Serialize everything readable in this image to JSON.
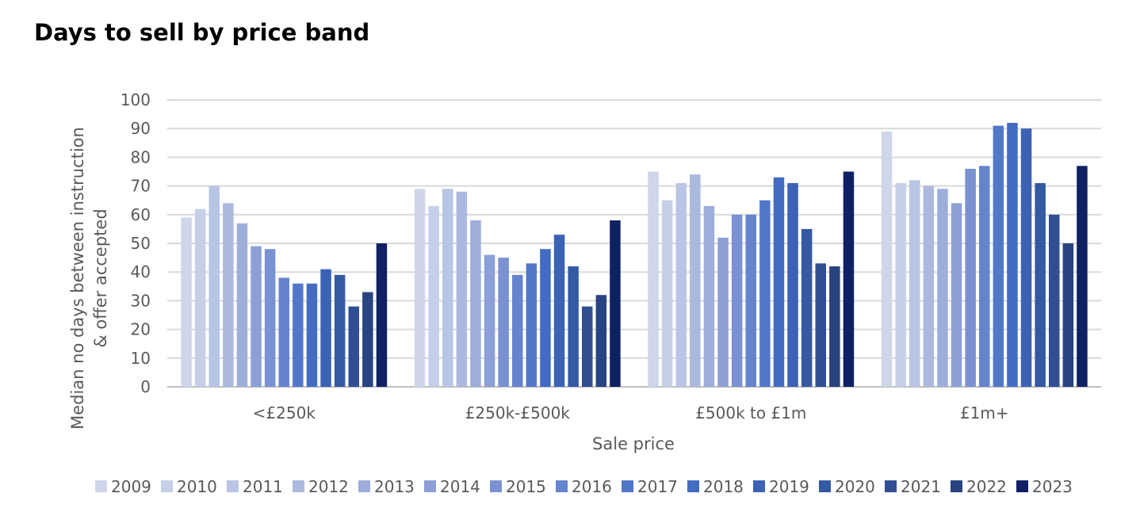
{
  "chart_data": {
    "type": "bar",
    "title": "Days to sell by price band",
    "xlabel": "Sale price",
    "ylabel_lines": [
      "Median no days between instruction",
      "& offer accepted"
    ],
    "ylim": [
      0,
      100
    ],
    "yticks": [
      0,
      10,
      20,
      30,
      40,
      50,
      60,
      70,
      80,
      90,
      100
    ],
    "grid": true,
    "legend_position": "bottom",
    "categories": [
      "<£250k",
      "£250k-£500k",
      "£500k to £1m",
      "£1m+"
    ],
    "series": [
      {
        "name": "2009",
        "color": "#cfd6ea",
        "values": [
          59,
          69,
          75,
          89
        ]
      },
      {
        "name": "2010",
        "color": "#c5cfe8",
        "values": [
          62,
          63,
          65,
          71
        ]
      },
      {
        "name": "2011",
        "color": "#b9c5e4",
        "values": [
          70,
          69,
          71,
          72
        ]
      },
      {
        "name": "2012",
        "color": "#acb9df",
        "values": [
          64,
          68,
          74,
          70
        ]
      },
      {
        "name": "2013",
        "color": "#9eaedb",
        "values": [
          57,
          58,
          63,
          69
        ]
      },
      {
        "name": "2014",
        "color": "#8ca0d6",
        "values": [
          49,
          46,
          52,
          64
        ]
      },
      {
        "name": "2015",
        "color": "#7a91d2",
        "values": [
          48,
          45,
          60,
          76
        ]
      },
      {
        "name": "2016",
        "color": "#6683cd",
        "values": [
          38,
          39,
          60,
          77
        ]
      },
      {
        "name": "2017",
        "color": "#5377c8",
        "values": [
          36,
          43,
          65,
          91
        ]
      },
      {
        "name": "2018",
        "color": "#436bc1",
        "values": [
          36,
          48,
          73,
          92
        ]
      },
      {
        "name": "2019",
        "color": "#3b62b4",
        "values": [
          41,
          53,
          71,
          90
        ]
      },
      {
        "name": "2020",
        "color": "#3559a3",
        "values": [
          39,
          42,
          55,
          71
        ]
      },
      {
        "name": "2021",
        "color": "#2f4f92",
        "values": [
          28,
          28,
          43,
          60
        ]
      },
      {
        "name": "2022",
        "color": "#284380",
        "values": [
          33,
          32,
          42,
          50
        ]
      },
      {
        "name": "2023",
        "color": "#0f2163",
        "values": [
          50,
          58,
          75,
          77
        ]
      }
    ]
  }
}
